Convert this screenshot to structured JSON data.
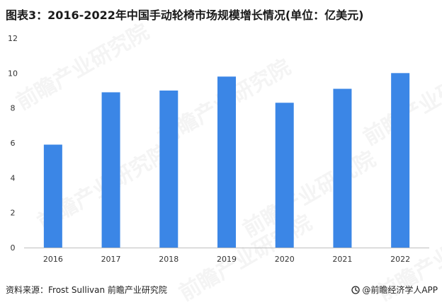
{
  "page": {
    "title": "图表3：2016-2022年中国手动轮椅市场规模增长情况(单位：亿美元)",
    "source": "资料来源：Frost Sullivan 前瞻产业研究院",
    "brand": "@前瞻经济学人APP",
    "brand_icon": "logo-mark-icon",
    "watermark": "前瞻产业研究院"
  },
  "chart_data": {
    "type": "bar",
    "title": "",
    "categories": [
      "2016",
      "2017",
      "2018",
      "2019",
      "2020",
      "2021",
      "2022"
    ],
    "values": [
      5.9,
      8.9,
      9.0,
      9.8,
      8.3,
      9.1,
      10.0
    ],
    "ylim": [
      0,
      12
    ],
    "yticks": [
      "0",
      "2",
      "4",
      "6",
      "8",
      "10",
      "12"
    ],
    "xlabel": "",
    "ylabel": "",
    "grid": false,
    "colors": {
      "bar": "#3b86e6",
      "axis": "#bfbfbf",
      "tick_text": "#333333"
    }
  }
}
